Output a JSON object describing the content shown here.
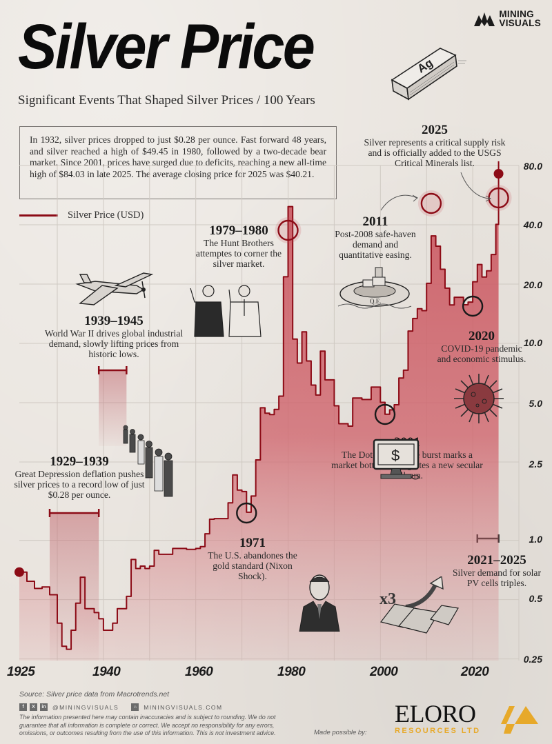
{
  "header": {
    "title": "Silver Price",
    "subtitle": "Significant Events That Shaped Silver Prices / 100 Years",
    "brand_line1": "MINING",
    "brand_line2": "VISUALS",
    "bar_label": "Ag"
  },
  "intro": {
    "text": "In 1932, silver prices dropped to just $0.28 per ounce. Fast forward 48 years, and silver reached a high of $49.45 in 1980, followed by a two-decade bear market. Since 2001, prices have surged due to deficits, reaching a new all-time high of $84.03 in late 2025. The average closing price for 2025 was $40.21."
  },
  "legend": {
    "label": "Silver Price (USD)",
    "color": "#8c0b16"
  },
  "annotations": [
    {
      "id": "a1929",
      "year": "1929–1939",
      "desc": "Great Depression deflation pushes silver prices to a record low of just $0.28 per ounce."
    },
    {
      "id": "a1939",
      "year": "1939–1945",
      "desc": "World War II drives global industrial demand, slowly lifting prices from historic lows."
    },
    {
      "id": "a1971",
      "year": "1971",
      "desc": "The U.S. abandones the gold standard (Nixon Shock)."
    },
    {
      "id": "a1979",
      "year": "1979–1980",
      "desc": "The Hunt Brothers attemptes to corner the silver market."
    },
    {
      "id": "a2001",
      "year": "2001",
      "desc": "The Dot-com bubble burst marks a market bottom and ignites a new secular bull run."
    },
    {
      "id": "a2011",
      "year": "2011",
      "desc": "Post-2008 safe-haven demand and quantitative easing."
    },
    {
      "id": "a2020",
      "year": "2020",
      "desc": "COVID-19 pandemic and economic stimulus."
    },
    {
      "id": "a2021",
      "year": "2021–2025",
      "desc": "Silver demand for solar PV cells triples."
    },
    {
      "id": "a2025",
      "year": "2025",
      "desc": "Silver represents a critical supply risk and is officially added to the USGS Critical Minerals list."
    }
  ],
  "illustrations": {
    "qe_label": "Q.E.",
    "solar_label": "x3",
    "computer_label": "$"
  },
  "axes": {
    "y_ticks": [
      "80.0",
      "40.0",
      "20.0",
      "10.0",
      "5.0",
      "2.5",
      "1.0",
      "0.5",
      "0.25"
    ],
    "x_ticks": [
      "1925",
      "1940",
      "1960",
      "1980",
      "2000",
      "2020"
    ]
  },
  "footer": {
    "source": "Source: Silver price data from Macrotrends.net",
    "social_handle": "@MININGVISUALS",
    "website": "MININGVISUALS.COM",
    "disclaimer": "The information presented here may contain inaccuracies and is subject to rounding. We do not guarantee that all information is complete or correct. We accept no responsibility for any errors, omissions, or outcomes resulting from the use of this information. This is not investment advice.",
    "made_possible": "Made possible by:",
    "sponsor_name": "ELORO",
    "sponsor_sub": "RESOURCES LTD"
  },
  "colors": {
    "line": "#8c0b16",
    "fill": "#c9545d",
    "accent_gold": "#e7a92a",
    "background": "#e9e4de"
  },
  "chart_data": {
    "type": "area",
    "title": "Silver Price",
    "subtitle": "Significant Events That Shaped Silver Prices / 100 Years",
    "xlabel": "",
    "ylabel": "Silver Price (USD)",
    "y_scale": "log",
    "ylim": [
      0.25,
      80
    ],
    "xlim": [
      1925,
      2025
    ],
    "grid": true,
    "legend_position": "top-left",
    "series": [
      {
        "name": "Silver Price (USD)",
        "x": [
          1925,
          1926,
          1927,
          1928,
          1929,
          1930,
          1931,
          1932,
          1933,
          1934,
          1935,
          1936,
          1937,
          1938,
          1939,
          1940,
          1941,
          1942,
          1943,
          1944,
          1945,
          1946,
          1947,
          1948,
          1949,
          1950,
          1951,
          1952,
          1955,
          1958,
          1960,
          1961,
          1962,
          1963,
          1964,
          1966,
          1967,
          1968,
          1969,
          1970,
          1971,
          1972,
          1973,
          1974,
          1975,
          1976,
          1977,
          1978,
          1979,
          1980,
          1981,
          1982,
          1983,
          1984,
          1985,
          1986,
          1987,
          1988,
          1990,
          1991,
          1993,
          1994,
          1996,
          1998,
          2000,
          2001,
          2002,
          2003,
          2004,
          2005,
          2006,
          2007,
          2008,
          2009,
          2010,
          2011,
          2012,
          2013,
          2014,
          2015,
          2016,
          2018,
          2019,
          2020,
          2021,
          2022,
          2023,
          2024,
          2025
        ],
        "values": [
          0.69,
          0.62,
          0.57,
          0.58,
          0.53,
          0.38,
          0.29,
          0.28,
          0.35,
          0.48,
          0.65,
          0.45,
          0.45,
          0.43,
          0.4,
          0.35,
          0.35,
          0.38,
          0.45,
          0.45,
          0.52,
          0.8,
          0.72,
          0.74,
          0.72,
          0.74,
          0.89,
          0.85,
          0.91,
          0.9,
          0.91,
          0.93,
          1.08,
          1.28,
          1.29,
          1.29,
          1.55,
          2.15,
          1.8,
          1.77,
          1.39,
          1.68,
          2.56,
          4.71,
          4.42,
          4.35,
          4.62,
          5.4,
          21.79,
          49.45,
          10.52,
          7.95,
          11.44,
          8.14,
          6.14,
          5.47,
          9.13,
          6.53,
          4.82,
          3.91,
          3.8,
          5.28,
          5.19,
          6.0,
          5.02,
          4.37,
          4.6,
          4.88,
          6.67,
          7.31,
          11.55,
          13.38,
          14.99,
          14.67,
          20.19,
          35.12,
          31.15,
          23.79,
          19.08,
          15.68,
          17.14,
          15.71,
          16.21,
          20.55,
          25.14,
          21.73,
          23.35,
          28.27,
          40.21
        ],
        "highlights": [
          {
            "x": 1932,
            "value": 0.28,
            "label": "Record low $0.28"
          },
          {
            "x": 1980,
            "value": 49.45,
            "label": "High $49.45"
          },
          {
            "x": 2025,
            "value": 84.03,
            "label": "All-time high $84.03"
          },
          {
            "x": 2025,
            "value": 40.21,
            "label": "2025 average close $40.21"
          }
        ]
      }
    ],
    "period_markers": [
      {
        "label": "1929–1939",
        "start": 1929,
        "end": 1939
      },
      {
        "label": "1939–1945",
        "start": 1939,
        "end": 1945
      },
      {
        "label": "2021–2025",
        "start": 2021,
        "end": 2025
      }
    ],
    "y_ticks": [
      80,
      40,
      20,
      10,
      5,
      2.5,
      1,
      0.5,
      0.25
    ],
    "x_ticks": [
      1925,
      1940,
      1960,
      1980,
      2000,
      2020
    ]
  }
}
